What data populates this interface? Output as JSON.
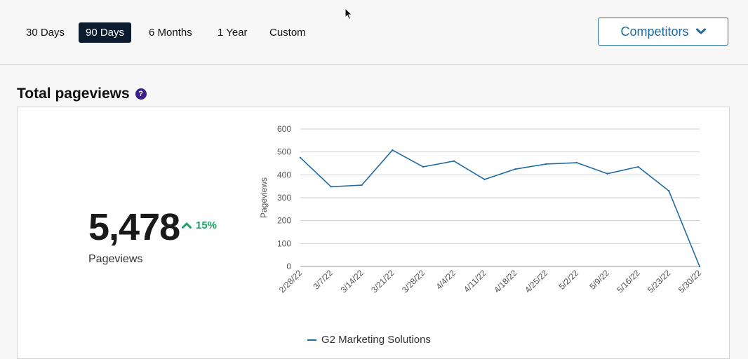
{
  "range_tabs": [
    {
      "label": "30 Days",
      "active": false
    },
    {
      "label": "90 Days",
      "active": true
    },
    {
      "label": "6 Months",
      "active": false
    },
    {
      "label": "1 Year",
      "active": false
    },
    {
      "label": "Custom",
      "active": false
    }
  ],
  "competitors_button": {
    "label": "Competitors",
    "icon": "chevron-down-icon"
  },
  "section": {
    "title": "Total pageviews",
    "help_icon": "question-circle-icon",
    "help_glyph": "?"
  },
  "kpi": {
    "value": "5,478",
    "change": "15%",
    "change_direction": "up",
    "label": "Pageviews"
  },
  "colors": {
    "accent": "#1f6aa0",
    "active_tab_bg": "#0c1c2e",
    "positive": "#1e9f62",
    "help_icon": "#3b1f8a"
  },
  "chart_data": {
    "type": "line",
    "ylabel": "Pageviews",
    "ylim": [
      0,
      600
    ],
    "yticks": [
      0,
      100,
      200,
      300,
      400,
      500,
      600
    ],
    "grid": true,
    "legend_position": "bottom",
    "x": [
      "2/28/22",
      "3/7/22",
      "3/14/22",
      "3/21/22",
      "3/28/22",
      "4/4/22",
      "4/11/22",
      "4/18/22",
      "4/25/22",
      "5/2/22",
      "5/9/22",
      "5/16/22",
      "5/23/22",
      "5/30/22"
    ],
    "series": [
      {
        "name": "G2 Marketing Solutions",
        "values": [
          475,
          348,
          355,
          508,
          435,
          460,
          380,
          425,
          447,
          453,
          405,
          435,
          330,
          0
        ]
      }
    ]
  }
}
